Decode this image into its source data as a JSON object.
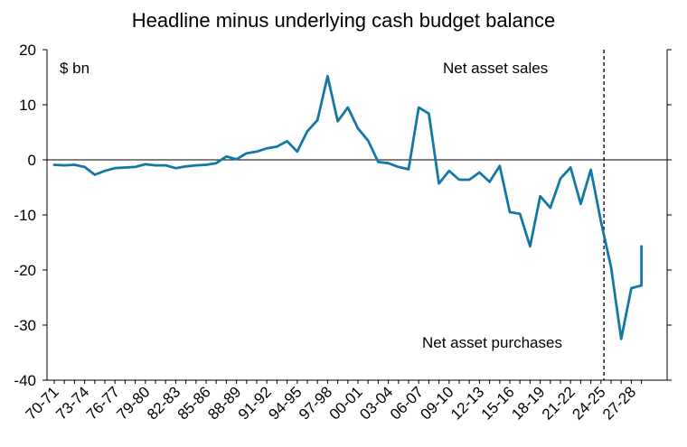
{
  "chart_data": {
    "type": "line",
    "title": "Headline minus underlying cash budget balance",
    "unit_label": "$ bn",
    "xlabel": "",
    "ylabel": "",
    "ylim": [
      -40,
      20
    ],
    "y_ticks": [
      20,
      10,
      0,
      -10,
      -20,
      -30,
      -40
    ],
    "x_tick_labels": [
      "70-71",
      "73-74",
      "76-77",
      "79-80",
      "82-83",
      "85-86",
      "88-89",
      "91-92",
      "94-95",
      "97-98",
      "00-01",
      "03-04",
      "06-07",
      "09-10",
      "12-13",
      "15-16",
      "18-19",
      "21-22",
      "24-25",
      "27-28"
    ],
    "annotations": {
      "upper": "Net asset sales",
      "lower": "Net asset purchases"
    },
    "projection_marker_after": "24-25",
    "grid": false,
    "colors": {
      "line": "#1478a6",
      "axis": "#000000",
      "marker": "#000000"
    },
    "series": [
      {
        "x": [
          "70-71",
          "71-72",
          "72-73",
          "73-74",
          "74-75",
          "75-76",
          "76-77",
          "77-78",
          "78-79",
          "79-80",
          "80-81",
          "81-82",
          "82-83",
          "83-84",
          "84-85",
          "85-86",
          "86-87",
          "87-88",
          "88-89",
          "89-90",
          "90-91",
          "91-92",
          "92-93",
          "93-94",
          "94-95",
          "95-96",
          "96-97",
          "97-98",
          "98-99",
          "99-00",
          "00-01",
          "01-02",
          "02-03",
          "03-04",
          "04-05",
          "05-06",
          "06-07",
          "07-08",
          "08-09",
          "09-10",
          "10-11",
          "11-12",
          "12-13",
          "13-14",
          "14-15",
          "15-16",
          "16-17",
          "17-18",
          "18-19",
          "19-20",
          "20-21",
          "21-22",
          "22-23",
          "23-24",
          "24-25",
          "25-26",
          "26-27",
          "27-28",
          "28-29"
        ],
        "values": [
          -0.9,
          -1.0,
          -0.9,
          -1.3,
          -2.7,
          -2.0,
          -1.5,
          -1.4,
          -1.3,
          -0.8,
          -1.0,
          -1.0,
          -1.5,
          -1.2,
          -1.0,
          -0.9,
          -0.6,
          0.6,
          0.1,
          1.2,
          1.5,
          2.1,
          2.4,
          3.4,
          1.5,
          5.2,
          7.2,
          15.2,
          7.0,
          9.5,
          5.7,
          3.5,
          -0.4,
          -0.6,
          -1.3,
          -1.7,
          9.5,
          8.4,
          -4.3,
          -2.0,
          -3.6,
          -3.6,
          -2.3,
          -4.0,
          -1.1,
          -9.5,
          -9.8,
          -15.7,
          -6.6,
          -8.7,
          -3.4,
          -1.4,
          -8.0,
          -1.8,
          -11.2,
          -19.5,
          -32.5,
          -23.3,
          -22.8
        ]
      },
      {
        "x": [
          "28-29"
        ],
        "values": [
          -15.7
        ]
      }
    ]
  }
}
